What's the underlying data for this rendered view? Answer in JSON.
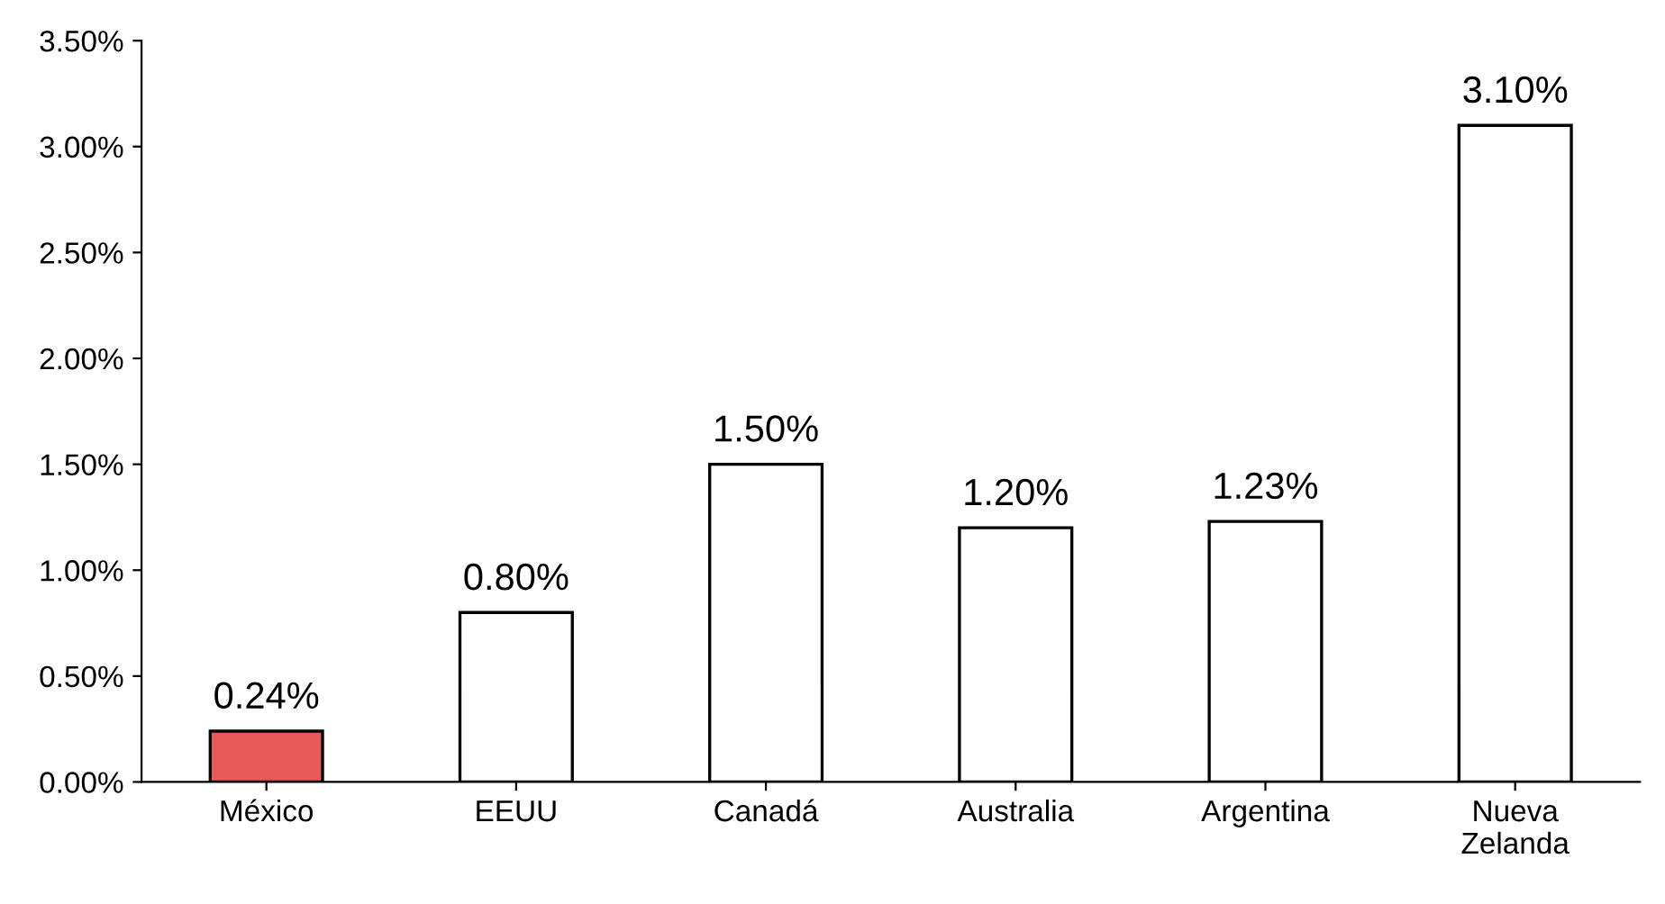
{
  "chart_data": {
    "type": "bar",
    "categories": [
      "México",
      "EEUU",
      "Canadá",
      "Australia",
      "Argentina",
      "Nueva\nZelanda"
    ],
    "values": [
      0.24,
      0.8,
      1.5,
      1.2,
      1.23,
      3.1
    ],
    "colors": [
      "#e85a5a",
      "#ffffff",
      "#ffffff",
      "#ffffff",
      "#ffffff",
      "#ffffff"
    ],
    "value_labels": [
      "0.24%",
      "0.80%",
      "1.50%",
      "1.20%",
      "1.23%",
      "3.10%"
    ],
    "ylim": [
      0,
      3.5
    ],
    "yticks": [
      {
        "value": 0,
        "label": "0.00%"
      },
      {
        "value": 0.5,
        "label": "0.50%"
      },
      {
        "value": 1.0,
        "label": "1.00%"
      },
      {
        "value": 1.5,
        "label": "1.50%"
      },
      {
        "value": 2.0,
        "label": "2.00%"
      },
      {
        "value": 2.5,
        "label": "2.50%"
      },
      {
        "value": 3.0,
        "label": "3.00%"
      },
      {
        "value": 3.5,
        "label": "3.50%"
      }
    ],
    "grid": false,
    "legend": false
  }
}
